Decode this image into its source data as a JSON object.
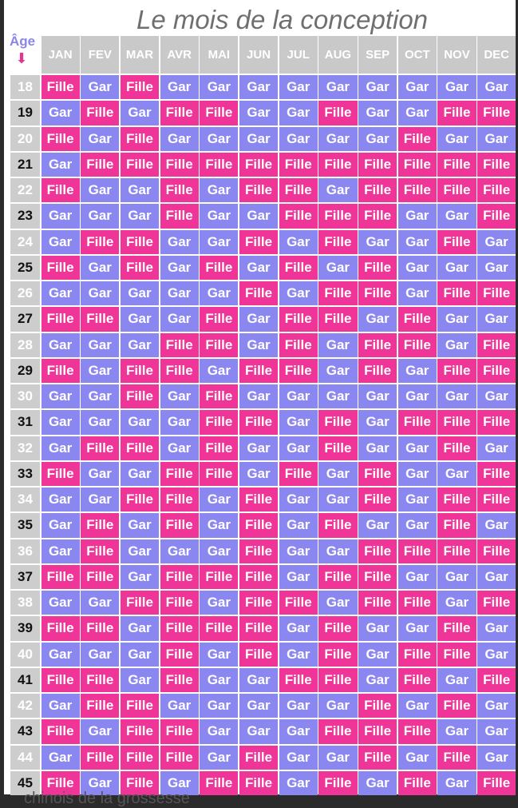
{
  "title": "Le mois de la conception",
  "age_label": "Âge",
  "age_arrow_icon": "arrow-down-icon",
  "footer_text": "chinois de la grossesse",
  "colors": {
    "fille": "#ef3597",
    "gar": "#8b87f0",
    "header": "#c9c9c9"
  },
  "months": [
    "JAN",
    "FEV",
    "MAR",
    "AVR",
    "MAI",
    "JUN",
    "JUL",
    "AUG",
    "SEP",
    "OCT",
    "NOV",
    "DEC"
  ],
  "rows": [
    {
      "age": "18",
      "values": [
        "Fille",
        "Gar",
        "Fille",
        "Gar",
        "Gar",
        "Gar",
        "Gar",
        "Gar",
        "Gar",
        "Gar",
        "Gar",
        "Gar"
      ]
    },
    {
      "age": "19",
      "values": [
        "Gar",
        "Fille",
        "Gar",
        "Fille",
        "Fille",
        "Gar",
        "Gar",
        "Fille",
        "Gar",
        "Gar",
        "Fille",
        "Fille"
      ]
    },
    {
      "age": "20",
      "values": [
        "Fille",
        "Gar",
        "Fille",
        "Gar",
        "Gar",
        "Gar",
        "Gar",
        "Gar",
        "Gar",
        "Fille",
        "Gar",
        "Gar"
      ]
    },
    {
      "age": "21",
      "values": [
        "Gar",
        "Fille",
        "Fille",
        "Fille",
        "Fille",
        "Fille",
        "Fille",
        "Fille",
        "Fille",
        "Fille",
        "Fille",
        "Fille"
      ]
    },
    {
      "age": "22",
      "values": [
        "Fille",
        "Gar",
        "Gar",
        "Fille",
        "Gar",
        "Fille",
        "Fille",
        "Gar",
        "Fille",
        "Fille",
        "Fille",
        "Fille"
      ]
    },
    {
      "age": "23",
      "values": [
        "Gar",
        "Gar",
        "Gar",
        "Fille",
        "Gar",
        "Gar",
        "Fille",
        "Fille",
        "Fille",
        "Gar",
        "Gar",
        "Fille"
      ]
    },
    {
      "age": "24",
      "values": [
        "Gar",
        "Fille",
        "Fille",
        "Gar",
        "Gar",
        "Fille",
        "Gar",
        "Fille",
        "Gar",
        "Gar",
        "Fille",
        "Gar"
      ]
    },
    {
      "age": "25",
      "values": [
        "Fille",
        "Gar",
        "Fille",
        "Gar",
        "Fille",
        "Gar",
        "Fille",
        "Gar",
        "Fille",
        "Gar",
        "Gar",
        "Gar"
      ]
    },
    {
      "age": "26",
      "values": [
        "Gar",
        "Gar",
        "Gar",
        "Gar",
        "Gar",
        "Fille",
        "Gar",
        "Fille",
        "Fille",
        "Gar",
        "Fille",
        "Fille"
      ]
    },
    {
      "age": "27",
      "values": [
        "Fille",
        "Fille",
        "Gar",
        "Gar",
        "Fille",
        "Gar",
        "Fille",
        "Fille",
        "Gar",
        "Fille",
        "Gar",
        "Gar"
      ]
    },
    {
      "age": "28",
      "values": [
        "Gar",
        "Gar",
        "Gar",
        "Fille",
        "Fille",
        "Gar",
        "Fille",
        "Gar",
        "Fille",
        "Fille",
        "Gar",
        "Fille"
      ]
    },
    {
      "age": "29",
      "values": [
        "Fille",
        "Gar",
        "Fille",
        "Fille",
        "Gar",
        "Fille",
        "Fille",
        "Gar",
        "Fille",
        "Gar",
        "Fille",
        "Fille"
      ]
    },
    {
      "age": "30",
      "values": [
        "Gar",
        "Gar",
        "Fille",
        "Gar",
        "Fille",
        "Gar",
        "Gar",
        "Gar",
        "Gar",
        "Gar",
        "Gar",
        "Gar"
      ]
    },
    {
      "age": "31",
      "values": [
        "Gar",
        "Gar",
        "Gar",
        "Gar",
        "Fille",
        "Fille",
        "Gar",
        "Fille",
        "Gar",
        "Fille",
        "Fille",
        "Fille"
      ]
    },
    {
      "age": "32",
      "values": [
        "Gar",
        "Fille",
        "Fille",
        "Gar",
        "Fille",
        "Gar",
        "Gar",
        "Fille",
        "Gar",
        "Gar",
        "Fille",
        "Gar"
      ]
    },
    {
      "age": "33",
      "values": [
        "Fille",
        "Gar",
        "Gar",
        "Fille",
        "Fille",
        "Gar",
        "Fille",
        "Gar",
        "Fille",
        "Gar",
        "Gar",
        "Fille"
      ]
    },
    {
      "age": "34",
      "values": [
        "Gar",
        "Gar",
        "Fille",
        "Fille",
        "Gar",
        "Fille",
        "Gar",
        "Gar",
        "Fille",
        "Gar",
        "Fille",
        "Fille"
      ]
    },
    {
      "age": "35",
      "values": [
        "Gar",
        "Fille",
        "Gar",
        "Fille",
        "Gar",
        "Fille",
        "Gar",
        "Fille",
        "Gar",
        "Gar",
        "Fille",
        "Gar"
      ]
    },
    {
      "age": "36",
      "values": [
        "Gar",
        "Fille",
        "Gar",
        "Gar",
        "Gar",
        "Fille",
        "Gar",
        "Gar",
        "Fille",
        "Fille",
        "Fille",
        "Fille"
      ]
    },
    {
      "age": "37",
      "values": [
        "Fille",
        "Fille",
        "Gar",
        "Fille",
        "Fille",
        "Fille",
        "Gar",
        "Fille",
        "Fille",
        "Gar",
        "Gar",
        "Gar"
      ]
    },
    {
      "age": "38",
      "values": [
        "Gar",
        "Gar",
        "Fille",
        "Fille",
        "Gar",
        "Fille",
        "Fille",
        "Gar",
        "Fille",
        "Fille",
        "Gar",
        "Fille"
      ]
    },
    {
      "age": "39",
      "values": [
        "Fille",
        "Fille",
        "Gar",
        "Fille",
        "Fille",
        "Fille",
        "Gar",
        "Fille",
        "Gar",
        "Gar",
        "Fille",
        "Gar"
      ]
    },
    {
      "age": "40",
      "values": [
        "Gar",
        "Gar",
        "Gar",
        "Fille",
        "Gar",
        "Fille",
        "Gar",
        "Fille",
        "Gar",
        "Fille",
        "Fille",
        "Gar"
      ]
    },
    {
      "age": "41",
      "values": [
        "Fille",
        "Fille",
        "Gar",
        "Fille",
        "Gar",
        "Gar",
        "Fille",
        "Fille",
        "Gar",
        "Fille",
        "Gar",
        "Fille"
      ]
    },
    {
      "age": "42",
      "values": [
        "Gar",
        "Fille",
        "Fille",
        "Gar",
        "Gar",
        "Gar",
        "Gar",
        "Gar",
        "Fille",
        "Gar",
        "Fille",
        "Gar"
      ]
    },
    {
      "age": "43",
      "values": [
        "Fille",
        "Gar",
        "Fille",
        "Fille",
        "Gar",
        "Gar",
        "Gar",
        "Fille",
        "Fille",
        "Fille",
        "Gar",
        "Gar"
      ]
    },
    {
      "age": "44",
      "values": [
        "Gar",
        "Fille",
        "Fille",
        "Fille",
        "Gar",
        "Fille",
        "Gar",
        "Gar",
        "Fille",
        "Gar",
        "Fille",
        "Gar"
      ]
    },
    {
      "age": "45",
      "values": [
        "Fille",
        "Gar",
        "Fille",
        "Gar",
        "Fille",
        "Fille",
        "Gar",
        "Fille",
        "Gar",
        "Fille",
        "Gar",
        "Fille"
      ]
    }
  ]
}
